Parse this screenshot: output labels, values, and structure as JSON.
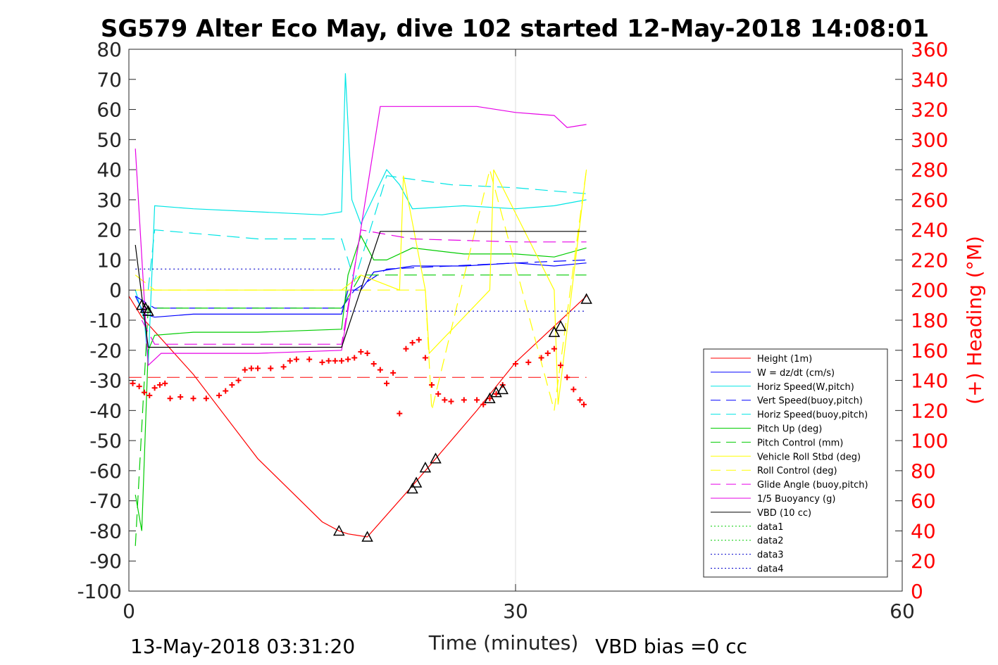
{
  "chart_data": {
    "type": "line",
    "title": "SG579 Alter Eco May, dive 102 started 12-May-2018 14:08:01",
    "xlabel": "Time (minutes)",
    "ylabel": "",
    "y2label": "(+) Heading (°M)",
    "footer_left": "13-May-2018 03:31:20",
    "footer_right": "VBD bias =0 cc",
    "xlim": [
      0,
      60
    ],
    "ylim": [
      -100,
      80
    ],
    "y2lim": [
      0,
      360
    ],
    "xticks": [
      "0",
      "30",
      "60"
    ],
    "yticks": [
      "80",
      "70",
      "60",
      "50",
      "40",
      "30",
      "20",
      "10",
      "0",
      "-10",
      "-20",
      "-30",
      "-40",
      "-50",
      "-60",
      "-70",
      "-80",
      "-90",
      "-100"
    ],
    "y2ticks": [
      "360",
      "340",
      "320",
      "300",
      "280",
      "260",
      "240",
      "220",
      "200",
      "180",
      "160",
      "140",
      "120",
      "100",
      "80",
      "60",
      "40",
      "20",
      "0"
    ],
    "grid": "x",
    "legend_position": "right",
    "series": [
      {
        "name": "Height (1m)",
        "style": "solid",
        "color": "#ff0000",
        "x": [
          0,
          1,
          5,
          10,
          15,
          16.3,
          17,
          18.5,
          22,
          27,
          30,
          33,
          35.5
        ],
        "y": [
          -2,
          -9,
          -28,
          -56,
          -77,
          -80,
          -81,
          -82,
          -65,
          -40,
          -24,
          -12,
          -2
        ]
      },
      {
        "name": "W = dz/dt (cm/s)",
        "style": "solid",
        "color": "#0000ff",
        "x": [
          0.5,
          1.2,
          2,
          5,
          10,
          15,
          16.5,
          17,
          18,
          19,
          22,
          26,
          30,
          33,
          35.5
        ],
        "y": [
          -2,
          -8,
          -9,
          -8,
          -8,
          -8,
          -8,
          0,
          0,
          6,
          8,
          8,
          9,
          8,
          9
        ]
      },
      {
        "name": "Horiz Speed(W,pitch)",
        "style": "solid",
        "color": "#00e5e5",
        "x": [
          0.5,
          1.2,
          1.5,
          2,
          5,
          10,
          15,
          16.5,
          16.8,
          17.3,
          18,
          20,
          21,
          22,
          26,
          30,
          33,
          35.5
        ],
        "y": [
          0,
          -10,
          -25,
          28,
          27,
          26,
          25,
          26,
          72,
          30,
          22,
          40,
          35,
          27,
          28,
          27,
          28,
          30
        ]
      },
      {
        "name": "Vert Speed(buoy,pitch)",
        "style": "dashed",
        "color": "#0000ff",
        "x": [
          0.5,
          2,
          10,
          16.5,
          17.5,
          20,
          30,
          35.5
        ],
        "y": [
          -2,
          -6,
          -6,
          -6,
          0,
          7,
          9,
          10
        ]
      },
      {
        "name": "Horiz Speed(buoy,pitch)",
        "style": "dashed",
        "color": "#00e5e5",
        "x": [
          1.5,
          2,
          10,
          16.5,
          17.5,
          20,
          25,
          30,
          35.5
        ],
        "y": [
          0,
          20,
          17,
          17,
          3,
          38,
          35,
          34,
          32
        ]
      },
      {
        "name": "Pitch Up (deg)",
        "style": "solid",
        "color": "#00cc00",
        "x": [
          0.5,
          1,
          1.5,
          2,
          5,
          10,
          16.5,
          17,
          18,
          19,
          20,
          22,
          26,
          30,
          33,
          35.5
        ],
        "y": [
          -68,
          -80,
          -20,
          -15,
          -14,
          -14,
          -13,
          5,
          18,
          10,
          10,
          14,
          12,
          12,
          11,
          14
        ]
      },
      {
        "name": "Pitch Control (mm)",
        "style": "dashed",
        "color": "#00cc00",
        "x": [
          0.5,
          1.5,
          5,
          16.5,
          18,
          35.5
        ],
        "y": [
          -85,
          -6,
          -6,
          -6,
          5,
          5
        ]
      },
      {
        "name": "Vehicle Roll Stbd (deg)",
        "style": "solid",
        "color": "#ffff00",
        "x": [
          0.5,
          2,
          10,
          16.5,
          18,
          21,
          21.3,
          23,
          23.3,
          28,
          28.3,
          33,
          33.3,
          35.5
        ],
        "y": [
          0,
          0,
          0,
          0,
          5,
          0,
          38,
          0,
          -21,
          0,
          40,
          0,
          -38,
          40
        ]
      },
      {
        "name": "Roll Control (deg)",
        "style": "dashed",
        "color": "#ffff00",
        "x": [
          0.5,
          2,
          10,
          16.5,
          18,
          23,
          23.5,
          28,
          33,
          35.5
        ],
        "y": [
          5,
          0,
          0,
          0,
          0,
          0,
          -40,
          40,
          -40,
          40
        ]
      },
      {
        "name": "Glide Angle (buoy,pitch)",
        "style": "dashed",
        "color": "#e600e6",
        "x": [
          1,
          2,
          10,
          16.5,
          18,
          22,
          30,
          35.5
        ],
        "y": [
          -10,
          -18,
          -18,
          -18,
          20,
          17,
          16,
          16
        ]
      },
      {
        "name": "1/5 Buoyancy (g)",
        "style": "solid",
        "color": "#e600e6",
        "x": [
          0.5,
          1.5,
          2.5,
          10,
          16.5,
          19.5,
          27,
          30,
          33,
          34,
          35.5
        ],
        "y": [
          47,
          -25,
          -21,
          -21,
          -20,
          61,
          61,
          59,
          58,
          54,
          55
        ]
      },
      {
        "name": "VBD (10 cc)",
        "style": "solid",
        "color": "#000000",
        "x": [
          0.5,
          1.5,
          10,
          16.5,
          19.5,
          35.5
        ],
        "y": [
          15,
          -19,
          -19,
          -19,
          19.5,
          19.5
        ]
      },
      {
        "name": "data1",
        "style": "dotted",
        "color": "#00cc00",
        "x": [],
        "y": []
      },
      {
        "name": "data2",
        "style": "dotted",
        "color": "#00cc00",
        "x": [],
        "y": []
      },
      {
        "name": "data3",
        "style": "dotted",
        "color": "#0000cc",
        "x": [
          0.5,
          16.5
        ],
        "y": [
          7,
          7
        ]
      },
      {
        "name": "data4",
        "style": "dotted",
        "color": "#0000cc",
        "x": [
          16.5,
          35.5
        ],
        "y": [
          -7,
          -7
        ]
      }
    ],
    "reference_lines": [
      {
        "style": "dashed",
        "color": "#ff0000",
        "y": -29,
        "x": [
          0,
          35.5
        ]
      }
    ],
    "heading_points": {
      "color": "#ff0000",
      "marker": "+",
      "x": [
        0.3,
        0.8,
        1.2,
        1.6,
        2,
        2.4,
        2.8,
        3.2,
        4,
        5,
        6,
        7,
        7.5,
        8,
        8.5,
        9,
        9.5,
        10,
        11,
        12,
        12.5,
        13,
        14,
        15,
        15.5,
        16,
        16.5,
        17,
        17.5,
        18,
        18.5,
        19,
        19.5,
        20,
        20.5,
        21,
        21.5,
        22,
        22.5,
        23,
        23.5,
        24,
        24.5,
        25,
        26,
        27,
        27.5,
        28,
        28.5,
        29,
        30,
        31,
        32,
        32.5,
        33,
        33.5,
        34,
        34.5,
        35,
        35.3
      ],
      "y": [
        138,
        136,
        132,
        130,
        135,
        137,
        138,
        128,
        129,
        128,
        128,
        130,
        133,
        137,
        140,
        147,
        148,
        148,
        148,
        149,
        153,
        154,
        154,
        152,
        153,
        153,
        153,
        154,
        155,
        159,
        158,
        151,
        147,
        138,
        145,
        118,
        161,
        165,
        167,
        155,
        137,
        131,
        127,
        126,
        127,
        127,
        124,
        128,
        131,
        137,
        151,
        152,
        155,
        158,
        161,
        150,
        142,
        134,
        127,
        124
      ]
    },
    "event_markers": {
      "marker": "triangle",
      "x": [
        1,
        1.3,
        1.5,
        16.3,
        18.5,
        22,
        22.3,
        23,
        23.8,
        28,
        28.5,
        29,
        33,
        33.5,
        35.5
      ],
      "y": [
        -5,
        -6,
        -7,
        -80,
        -82,
        -66,
        -64,
        -59,
        -56,
        -36,
        -34,
        -33,
        -14,
        -12,
        -3
      ]
    }
  }
}
